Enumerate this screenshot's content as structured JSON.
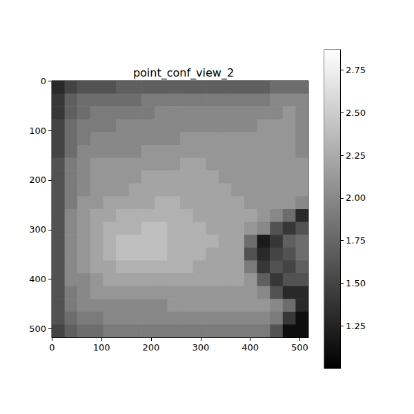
{
  "chart_data": {
    "type": "heatmap",
    "title": "point_conf_view_2",
    "xlim": [
      -0.5,
      517.5
    ],
    "ylim": [
      517.5,
      -0.5
    ],
    "xticks": [
      0,
      100,
      200,
      300,
      400,
      500
    ],
    "yticks": [
      0,
      100,
      200,
      300,
      400,
      500
    ],
    "cells": [
      [
        1.3,
        1.5,
        1.6,
        1.6,
        1.6,
        1.7,
        1.7,
        1.7,
        1.7,
        1.7,
        1.7,
        1.7,
        1.7,
        1.7,
        1.7,
        1.7,
        1.7,
        1.8,
        1.8,
        1.8
      ],
      [
        1.4,
        1.7,
        1.8,
        1.8,
        1.8,
        1.8,
        1.8,
        1.9,
        1.9,
        1.9,
        1.9,
        1.9,
        1.9,
        1.9,
        1.9,
        1.9,
        1.9,
        2.0,
        2.0,
        2.0
      ],
      [
        1.4,
        1.7,
        1.8,
        1.9,
        1.9,
        1.9,
        1.9,
        1.9,
        2.0,
        2.0,
        2.0,
        2.0,
        2.0,
        2.0,
        2.0,
        2.0,
        2.0,
        2.0,
        2.1,
        2.0
      ],
      [
        1.5,
        1.8,
        1.9,
        1.9,
        1.9,
        2.0,
        2.0,
        2.0,
        2.0,
        2.0,
        2.0,
        2.0,
        2.0,
        2.0,
        2.0,
        2.0,
        2.1,
        2.1,
        2.1,
        2.0
      ],
      [
        1.5,
        1.8,
        1.9,
        2.0,
        2.0,
        2.0,
        2.0,
        2.0,
        2.0,
        2.0,
        2.1,
        2.1,
        2.1,
        2.1,
        2.1,
        2.1,
        2.1,
        2.1,
        2.1,
        2.0
      ],
      [
        1.5,
        1.8,
        2.0,
        2.0,
        2.0,
        2.0,
        2.0,
        2.1,
        2.1,
        2.1,
        2.1,
        2.1,
        2.1,
        2.1,
        2.1,
        2.1,
        2.1,
        2.1,
        2.1,
        2.0
      ],
      [
        1.6,
        1.9,
        2.0,
        2.1,
        2.1,
        2.1,
        2.1,
        2.1,
        2.1,
        2.1,
        2.2,
        2.2,
        2.1,
        2.1,
        2.1,
        2.1,
        2.1,
        2.1,
        2.1,
        2.1
      ],
      [
        1.6,
        1.9,
        2.0,
        2.1,
        2.1,
        2.1,
        2.1,
        2.2,
        2.2,
        2.2,
        2.2,
        2.2,
        2.2,
        2.1,
        2.1,
        2.1,
        2.1,
        2.1,
        2.1,
        2.1
      ],
      [
        1.6,
        1.9,
        2.0,
        2.1,
        2.1,
        2.1,
        2.2,
        2.2,
        2.2,
        2.2,
        2.2,
        2.2,
        2.2,
        2.2,
        2.1,
        2.1,
        2.1,
        2.1,
        2.1,
        2.1
      ],
      [
        1.6,
        1.9,
        2.1,
        2.1,
        2.2,
        2.2,
        2.2,
        2.2,
        2.3,
        2.3,
        2.2,
        2.2,
        2.2,
        2.2,
        2.2,
        2.1,
        2.1,
        2.1,
        2.1,
        2.0
      ],
      [
        1.6,
        2.0,
        2.1,
        2.2,
        2.2,
        2.3,
        2.3,
        2.3,
        2.3,
        2.3,
        2.3,
        2.2,
        2.2,
        2.2,
        2.2,
        2.2,
        2.1,
        2.0,
        1.8,
        1.3
      ],
      [
        1.6,
        2.0,
        2.1,
        2.2,
        2.3,
        2.3,
        2.3,
        2.4,
        2.4,
        2.3,
        2.3,
        2.3,
        2.2,
        2.2,
        2.2,
        2.1,
        2.0,
        1.6,
        1.4,
        1.6
      ],
      [
        1.6,
        2.0,
        2.1,
        2.2,
        2.3,
        2.4,
        2.4,
        2.4,
        2.4,
        2.3,
        2.3,
        2.3,
        2.3,
        2.2,
        2.2,
        1.8,
        1.2,
        1.4,
        1.7,
        1.8
      ],
      [
        1.6,
        2.0,
        2.1,
        2.2,
        2.3,
        2.4,
        2.4,
        2.4,
        2.4,
        2.3,
        2.3,
        2.3,
        2.2,
        2.2,
        2.2,
        1.6,
        1.3,
        1.5,
        1.6,
        1.8
      ],
      [
        1.6,
        2.0,
        2.1,
        2.2,
        2.2,
        2.3,
        2.3,
        2.3,
        2.3,
        2.3,
        2.3,
        2.2,
        2.2,
        2.2,
        2.2,
        1.9,
        1.4,
        1.6,
        1.5,
        1.7
      ],
      [
        1.6,
        2.0,
        2.0,
        2.1,
        2.2,
        2.2,
        2.2,
        2.2,
        2.2,
        2.2,
        2.2,
        2.2,
        2.2,
        2.2,
        2.2,
        2.1,
        1.7,
        1.4,
        1.6,
        1.6
      ],
      [
        1.6,
        1.9,
        2.0,
        2.1,
        2.1,
        2.1,
        2.1,
        2.1,
        2.1,
        2.1,
        2.1,
        2.1,
        2.1,
        2.1,
        2.1,
        2.1,
        2.0,
        1.6,
        1.3,
        1.3
      ],
      [
        1.6,
        1.9,
        2.0,
        2.0,
        2.0,
        2.0,
        2.0,
        2.0,
        2.0,
        2.1,
        2.1,
        2.1,
        2.1,
        2.1,
        2.1,
        2.1,
        2.1,
        2.0,
        1.8,
        1.3
      ],
      [
        1.6,
        1.8,
        1.9,
        1.9,
        2.0,
        2.0,
        2.0,
        2.0,
        2.0,
        2.0,
        2.0,
        2.0,
        2.0,
        2.0,
        2.0,
        2.0,
        2.0,
        1.9,
        1.4,
        1.1
      ],
      [
        1.5,
        1.7,
        1.8,
        1.8,
        1.9,
        1.9,
        1.9,
        1.9,
        1.9,
        1.9,
        1.9,
        1.9,
        1.9,
        1.9,
        1.9,
        1.9,
        1.9,
        1.6,
        1.1,
        1.1
      ]
    ],
    "colorbar": {
      "range": [
        1.0,
        2.87
      ],
      "ticks": [
        {
          "value": 1.25,
          "label": "1.25"
        },
        {
          "value": 1.5,
          "label": "1.50"
        },
        {
          "value": 1.75,
          "label": "1.75"
        },
        {
          "value": 2.0,
          "label": "2.00"
        },
        {
          "value": 2.25,
          "label": "2.25"
        },
        {
          "value": 2.5,
          "label": "2.50"
        },
        {
          "value": 2.75,
          "label": "2.75"
        }
      ]
    }
  }
}
